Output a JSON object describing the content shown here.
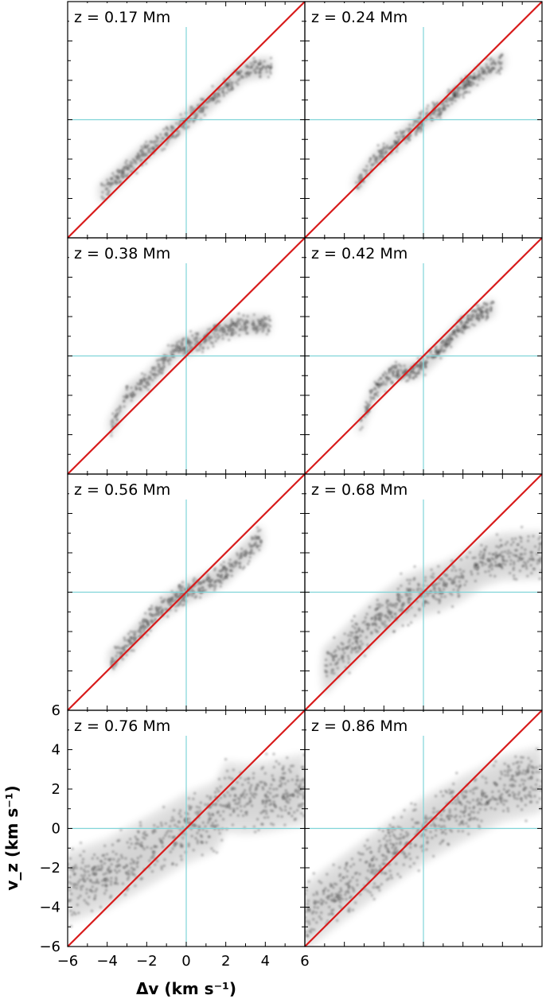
{
  "colors": {
    "identity_line": "#d81c1c",
    "zero_line": "#7fd4d8",
    "density": "#111111",
    "frame": "#000000"
  },
  "chart_data": {
    "type": "heatmap",
    "description_units": "2D histogram of v_z versus delta v, shown as grayscale density, one panel per height z",
    "layout": "4 rows x 2 columns, shared axes",
    "xlabel": "Δv (km s⁻¹)",
    "ylabel": "v_z (km s⁻¹)",
    "xlim": [
      -6,
      6
    ],
    "ylim": [
      -6,
      6
    ],
    "x_ticks": [
      -6,
      -4,
      -2,
      0,
      2,
      4,
      6
    ],
    "y_ticks": [
      -6,
      -4,
      -2,
      0,
      2,
      4,
      6
    ],
    "reference_lines": [
      "v_z = Δv (red diagonal)",
      "v_z = 0 (horizontal)",
      "Δv = 0 (vertical)"
    ],
    "panels": [
      {
        "label": "z = 0.17 Mm",
        "ridge": [
          [
            -4.3,
            -3.7
          ],
          [
            -3,
            -2.5
          ],
          [
            -2,
            -1.6
          ],
          [
            -1,
            -0.9
          ],
          [
            0,
            0
          ],
          [
            1,
            0.8
          ],
          [
            2,
            1.7
          ],
          [
            3,
            2.5
          ],
          [
            4.3,
            2.7
          ]
        ],
        "width": 0.25
      },
      {
        "label": "z = 0.24 Mm",
        "ridge": [
          [
            -3.4,
            -3.3
          ],
          [
            -2.4,
            -2.0
          ],
          [
            -1.6,
            -1.4
          ],
          [
            -0.6,
            -0.5
          ],
          [
            0,
            0
          ],
          [
            1,
            0.7
          ],
          [
            2,
            1.7
          ],
          [
            3,
            2.4
          ],
          [
            4,
            3.0
          ]
        ],
        "width": 0.22
      },
      {
        "label": "z = 0.38 Mm",
        "ridge": [
          [
            -3.8,
            -3.6
          ],
          [
            -3,
            -2.0
          ],
          [
            -2,
            -1.3
          ],
          [
            -1,
            -0.2
          ],
          [
            -0.5,
            0.4
          ],
          [
            0,
            0.5
          ],
          [
            1,
            0.9
          ],
          [
            2,
            1.4
          ],
          [
            3,
            1.6
          ],
          [
            4.3,
            1.6
          ]
        ],
        "width": 0.25
      },
      {
        "label": "z = 0.42 Mm",
        "ridge": [
          [
            -3.2,
            -3.5
          ],
          [
            -2.5,
            -1.8
          ],
          [
            -1.5,
            -0.8
          ],
          [
            -0.5,
            -0.8
          ],
          [
            0,
            -0.5
          ],
          [
            1,
            0.5
          ],
          [
            2,
            1.6
          ],
          [
            3,
            2.2
          ],
          [
            3.6,
            2.5
          ]
        ],
        "width": 0.22
      },
      {
        "label": "z = 0.56 Mm",
        "ridge": [
          [
            -3.8,
            -3.5
          ],
          [
            -2.5,
            -2.2
          ],
          [
            -1.5,
            -1.0
          ],
          [
            0,
            0
          ],
          [
            1,
            0.4
          ],
          [
            2,
            1.0
          ],
          [
            3,
            2.0
          ],
          [
            3.8,
            2.8
          ]
        ],
        "width": 0.28
      },
      {
        "label": "z = 0.68 Mm",
        "ridge": [
          [
            -5,
            -4.0
          ],
          [
            -4,
            -3.0
          ],
          [
            -2.5,
            -1.5
          ],
          [
            -1,
            -0.4
          ],
          [
            0,
            0
          ],
          [
            1,
            0.3
          ],
          [
            2,
            0.8
          ],
          [
            3,
            1.5
          ],
          [
            4,
            1.8
          ],
          [
            6,
            1.9
          ]
        ],
        "width": 0.55
      },
      {
        "label": "z = 0.76 Mm",
        "ridge": [
          [
            -6,
            -3.0
          ],
          [
            -4,
            -2.3
          ],
          [
            -2,
            -1.2
          ],
          [
            0,
            0
          ],
          [
            1.5,
            0.6
          ],
          [
            2,
            1.6
          ],
          [
            3,
            1.5
          ],
          [
            4,
            1.6
          ],
          [
            6,
            2.0
          ]
        ],
        "width": 0.8
      },
      {
        "label": "z = 0.86 Mm",
        "ridge": [
          [
            -6,
            -4.5
          ],
          [
            -4,
            -3.0
          ],
          [
            -2,
            -1.5
          ],
          [
            0,
            -0.1
          ],
          [
            2,
            1.0
          ],
          [
            4,
            2.0
          ],
          [
            6,
            2.5
          ]
        ],
        "width": 0.75
      }
    ]
  }
}
